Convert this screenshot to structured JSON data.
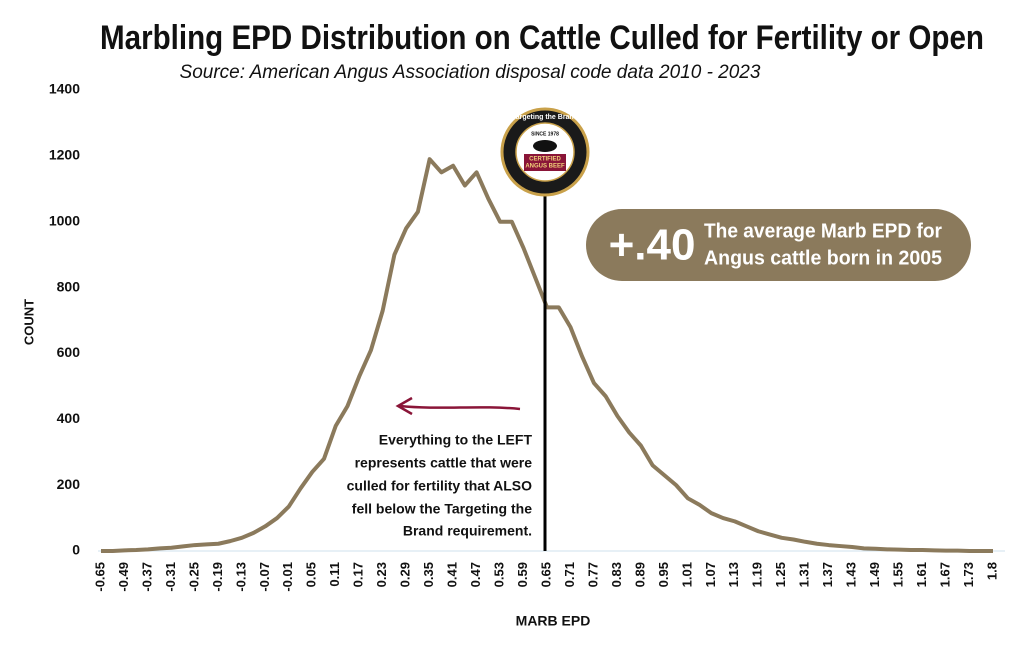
{
  "chart_data": {
    "type": "line",
    "title": "Marbling EPD Distribution on Cattle Culled for Fertility or Open",
    "subtitle": "Source: American Angus Association disposal code data 2010 - 2023",
    "x_label": "MARB EPD",
    "y_label": "COUNT",
    "categories": [
      "-0.65",
      null,
      "-0.49",
      null,
      "-0.37",
      null,
      "-0.31",
      null,
      "-0.25",
      null,
      "-0.19",
      null,
      "-0.13",
      null,
      "-0.07",
      null,
      "-0.01",
      null,
      "0.05",
      null,
      "0.11",
      null,
      "0.17",
      null,
      "0.23",
      null,
      "0.29",
      null,
      "0.35",
      null,
      "0.41",
      null,
      "0.47",
      null,
      "0.53",
      null,
      "0.59",
      null,
      "0.65",
      null,
      "0.71",
      null,
      "0.77",
      null,
      "0.83",
      null,
      "0.89",
      null,
      "0.95",
      null,
      "1.01",
      null,
      "1.07",
      null,
      "1.13",
      null,
      "1.19",
      null,
      "1.25",
      null,
      "1.31",
      null,
      "1.37",
      null,
      "1.43",
      null,
      "1.49",
      null,
      "1.55",
      null,
      "1.61",
      null,
      "1.67",
      null,
      "1.73",
      null,
      "1.8"
    ],
    "series": [
      {
        "color": "#8b7a5c",
        "values": [
          0,
          0,
          2,
          3,
          5,
          8,
          10,
          14,
          18,
          20,
          22,
          30,
          40,
          55,
          75,
          100,
          135,
          190,
          240,
          280,
          380,
          440,
          530,
          610,
          730,
          900,
          980,
          1030,
          1190,
          1150,
          1170,
          1110,
          1150,
          1070,
          1000,
          1000,
          920,
          830,
          740,
          740,
          680,
          590,
          510,
          470,
          410,
          360,
          320,
          260,
          230,
          200,
          160,
          140,
          115,
          100,
          90,
          75,
          60,
          50,
          40,
          35,
          28,
          22,
          18,
          15,
          12,
          8,
          7,
          5,
          4,
          3,
          3,
          2,
          1,
          1,
          0,
          0,
          0
        ]
      }
    ],
    "ylim": [
      0,
      1400
    ],
    "yticks": [
      0,
      200,
      400,
      600,
      800,
      1000,
      1200,
      1400
    ],
    "reference_line": 0.65,
    "callout": {
      "value": "+.40",
      "lines": [
        "The average Marb EPD for",
        "Angus cattle born in 2005"
      ]
    },
    "note_lines": [
      "Everything to the LEFT",
      "represents cattle that were",
      "culled for  fertility that ALSO",
      "fell below the Targeting the",
      "Brand requirement."
    ],
    "logo": {
      "ring": "Targeting the Brand",
      "since": "SINCE 1978",
      "brand": [
        "CERTIFIED",
        "ANGUS BEEF"
      ]
    }
  }
}
